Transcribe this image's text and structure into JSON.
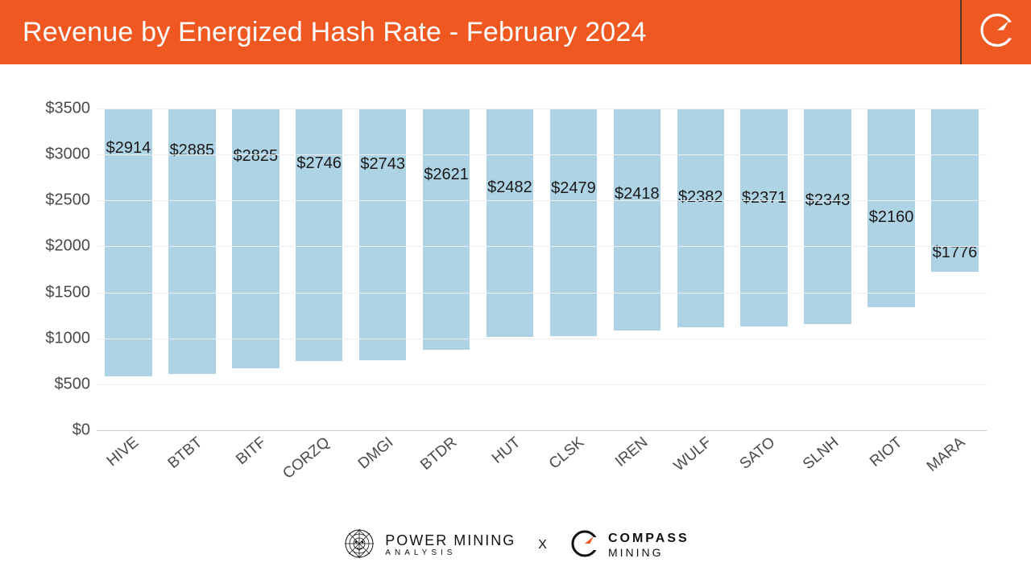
{
  "header": {
    "title": "Revenue by Energized Hash Rate - February 2024",
    "background_color": "#f05822",
    "title_color": "#ffffff",
    "title_fontsize": 34,
    "logo_name": "compass-c-icon",
    "logo_color": "#ffffff",
    "divider_color": "#333333"
  },
  "chart": {
    "type": "bar",
    "ylim": [
      0,
      3500
    ],
    "ytick_step": 500,
    "y_ticks": [
      0,
      500,
      1000,
      1500,
      2000,
      2500,
      3000,
      3500
    ],
    "y_tick_labels": [
      "$0",
      "$500",
      "$1000",
      "$1500",
      "$2000",
      "$2500",
      "$3000",
      "$3500"
    ],
    "y_label_color": "#4a4a4a",
    "y_label_fontsize": 20,
    "x_label_color": "#4a4a4a",
    "x_label_fontsize": 19,
    "x_label_rotation_deg": -40,
    "grid_color": "#eeeeee",
    "axis_color": "#cccccc",
    "background_color": "#ffffff",
    "bar_color": "#aed3e5",
    "bar_width_ratio": 0.74,
    "value_label_color": "#1a1a1a",
    "value_label_fontsize": 20,
    "value_prefix": "$",
    "categories": [
      "HIVE",
      "BTBT",
      "BITF",
      "CORZQ",
      "DMGI",
      "BTDR",
      "HUT",
      "CLSK",
      "IREN",
      "WULF",
      "SATO",
      "SLNH",
      "RIOT",
      "MARA"
    ],
    "values": [
      2914,
      2885,
      2825,
      2746,
      2743,
      2621,
      2482,
      2479,
      2418,
      2382,
      2371,
      2343,
      2160,
      1776
    ]
  },
  "footer": {
    "power_mining": {
      "icon_name": "lion-head-icon",
      "main": "POWER MINING",
      "sub": "ANALYSIS"
    },
    "separator": "X",
    "compass_mining": {
      "icon_name": "compass-c-icon",
      "main": "COMPASS",
      "sub": "MINING"
    }
  }
}
